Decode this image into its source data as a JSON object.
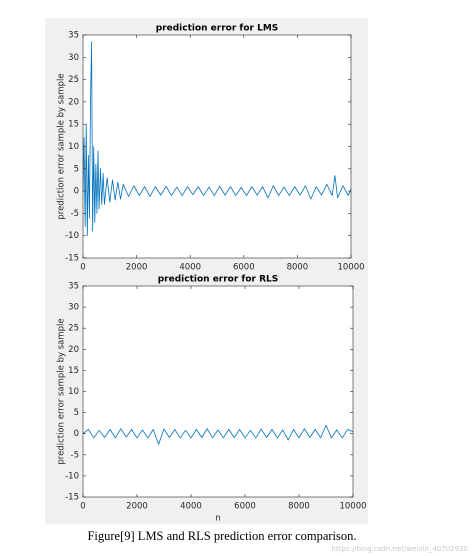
{
  "chart_data": [
    {
      "type": "line",
      "title": "prediction error for LMS",
      "y_label": "prediction error sample by sample",
      "color": "#0072bd",
      "x": [
        0,
        40,
        80,
        120,
        160,
        200,
        240,
        280,
        320,
        360,
        400,
        440,
        480,
        520,
        560,
        600,
        650,
        700,
        750,
        800,
        900,
        1000,
        1100,
        1200,
        1300,
        1400,
        1500,
        1700,
        1900,
        2100,
        2300,
        2500,
        2700,
        2900,
        3100,
        3300,
        3500,
        3700,
        3900,
        4100,
        4300,
        4500,
        4700,
        4900,
        5100,
        5300,
        5500,
        5700,
        5900,
        6100,
        6300,
        6500,
        6700,
        6900,
        7100,
        7300,
        7500,
        7700,
        7900,
        8100,
        8300,
        8500,
        8700,
        8900,
        9100,
        9300,
        9400,
        9500,
        9700,
        9900,
        10000
      ],
      "values": [
        0,
        12,
        -8,
        15,
        -10,
        8,
        -6,
        20,
        33.5,
        -9,
        10,
        -7,
        6,
        -5,
        9,
        -4,
        5,
        -3,
        4,
        -3,
        3,
        -2.5,
        2.5,
        -2,
        2,
        -1.8,
        1.5,
        -1.2,
        1.2,
        -1,
        1,
        -1.2,
        1,
        -0.9,
        1.1,
        -1,
        0.9,
        -1,
        1,
        -0.8,
        1,
        -1,
        0.9,
        -1,
        1.1,
        -0.9,
        1,
        -1,
        0.8,
        -1,
        1,
        -0.9,
        1,
        -1.5,
        1.2,
        -1,
        0.9,
        -1,
        1,
        -0.9,
        1.2,
        -1.8,
        1,
        -0.9,
        1.5,
        -1,
        3.5,
        -1.5,
        1.2,
        -1,
        0.5
      ],
      "xlim": [
        0,
        10000
      ],
      "ylim": [
        -15,
        35
      ],
      "xticks": [
        0,
        2000,
        4000,
        6000,
        8000,
        10000
      ],
      "yticks": [
        -15,
        -10,
        -5,
        0,
        5,
        10,
        15,
        20,
        25,
        30,
        35
      ]
    },
    {
      "type": "line",
      "title": "prediction error for RLS",
      "y_label": "prediction error sample by sample",
      "x_label": "n",
      "color": "#0072bd",
      "x": [
        0,
        200,
        400,
        600,
        800,
        1000,
        1200,
        1400,
        1600,
        1800,
        2000,
        2200,
        2400,
        2600,
        2800,
        3000,
        3200,
        3400,
        3600,
        3800,
        4000,
        4200,
        4400,
        4600,
        4800,
        5000,
        5200,
        5400,
        5600,
        5800,
        6000,
        6200,
        6400,
        6600,
        6800,
        7000,
        7200,
        7400,
        7600,
        7800,
        8000,
        8200,
        8400,
        8600,
        8800,
        9000,
        9200,
        9400,
        9600,
        9800,
        10000
      ],
      "values": [
        0,
        1,
        -1,
        0.8,
        -0.9,
        1,
        -1,
        1.2,
        -0.8,
        1,
        -1,
        0.9,
        -1,
        1,
        -2.5,
        1.1,
        -0.9,
        1,
        -1,
        0.8,
        -1,
        1,
        -0.9,
        1.2,
        -1,
        0.9,
        -1,
        1,
        -0.9,
        1,
        -1,
        0.8,
        -1,
        1.1,
        -0.9,
        1,
        -1,
        0.9,
        -1.5,
        1,
        -1,
        1.2,
        -0.9,
        1,
        -1,
        2,
        -1,
        0.9,
        -1,
        1,
        0.5
      ],
      "xlim": [
        0,
        10000
      ],
      "ylim": [
        -15,
        35
      ],
      "xticks": [
        0,
        2000,
        4000,
        6000,
        8000,
        10000
      ],
      "yticks": [
        -15,
        -10,
        -5,
        0,
        5,
        10,
        15,
        20,
        25,
        30,
        35
      ]
    }
  ],
  "caption": "Figure[9] LMS and RLS prediction error comparison.",
  "watermark": "https://blog.csdn.net/weixin_40702920"
}
